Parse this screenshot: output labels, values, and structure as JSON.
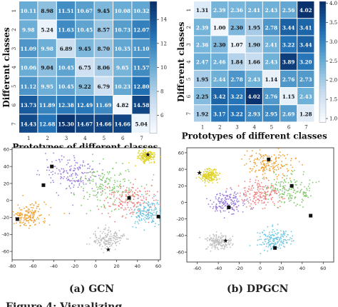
{
  "chart_data": [
    {
      "type": "heatmap",
      "xlabel": "Prototypes of different classes",
      "ylabel": "Different classes",
      "x_ticks": [
        "1",
        "2",
        "3",
        "4",
        "5",
        "6",
        "7"
      ],
      "y_ticks": [
        "1",
        "2",
        "3",
        "4",
        "5",
        "6",
        "7"
      ],
      "colorbar": {
        "ticks": [
          "6",
          "8",
          "10",
          "12",
          "14"
        ],
        "vmin": 4.5,
        "vmax": 15.5
      },
      "values": [
        [
          10.11,
          8.98,
          11.51,
          10.67,
          9.45,
          10.08,
          10.32
        ],
        [
          9.98,
          5.24,
          11.63,
          10.45,
          8.57,
          10.73,
          12.07
        ],
        [
          11.09,
          9.98,
          6.89,
          9.45,
          8.7,
          10.35,
          11.1
        ],
        [
          10.06,
          9.04,
          10.45,
          6.75,
          8.06,
          9.65,
          11.57
        ],
        [
          11.12,
          9.95,
          10.45,
          9.22,
          6.79,
          10.23,
          12.8
        ],
        [
          13.73,
          11.89,
          12.38,
          12.49,
          11.69,
          4.82,
          14.58
        ],
        [
          14.43,
          12.68,
          15.3,
          14.67,
          14.66,
          14.66,
          5.04
        ]
      ]
    },
    {
      "type": "heatmap",
      "xlabel": "Prototypes of different classes",
      "ylabel": "Different classes",
      "x_ticks": [
        "1",
        "2",
        "3",
        "4",
        "5",
        "6",
        "7"
      ],
      "y_ticks": [
        "1",
        "2",
        "3",
        "4",
        "5",
        "6",
        "7"
      ],
      "colorbar": {
        "ticks": [
          "1.0",
          "1.5",
          "2.0",
          "2.5",
          "3.0",
          "3.5",
          "4.0"
        ],
        "vmin": 0.9,
        "vmax": 4.05
      },
      "values": [
        [
          1.31,
          2.39,
          2.36,
          2.41,
          2.43,
          2.56,
          4.02
        ],
        [
          2.39,
          1.0,
          2.3,
          1.95,
          2.78,
          3.44,
          3.41
        ],
        [
          2.36,
          2.3,
          1.07,
          1.9,
          2.41,
          3.22,
          3.44
        ],
        [
          2.47,
          2.46,
          1.84,
          1.66,
          2.43,
          3.89,
          3.2
        ],
        [
          1.95,
          2.44,
          2.78,
          2.43,
          1.14,
          2.76,
          2.73
        ],
        [
          2.25,
          3.42,
          3.22,
          4.02,
          2.76,
          1.15,
          2.43
        ],
        [
          1.92,
          3.17,
          3.22,
          2.93,
          2.95,
          2.69,
          1.28
        ]
      ]
    },
    {
      "type": "scatter",
      "caption": "(a) GCN",
      "x_ticks": [
        "-80",
        "-60",
        "-40",
        "-20",
        "0",
        "20",
        "40",
        "60"
      ],
      "y_ticks": [
        "-60",
        "-40",
        "-20",
        "0",
        "20",
        "40",
        "60"
      ],
      "xlim": [
        -80,
        62
      ],
      "ylim": [
        -70,
        62
      ],
      "clusters": [
        {
          "color": "#f0a030",
          "cx": -65,
          "cy": -18,
          "spread": 9
        },
        {
          "color": "#dfd22a",
          "cx": 49,
          "cy": 52,
          "spread": 4
        },
        {
          "color": "#9b7fdb",
          "cx": -22,
          "cy": 30,
          "spread": 14
        },
        {
          "color": "#7ec96a",
          "cx": 12,
          "cy": 18,
          "spread": 16
        },
        {
          "color": "#f08080",
          "cx": 32,
          "cy": 0,
          "spread": 12
        },
        {
          "color": "#6fc6e0",
          "cx": 50,
          "cy": -15,
          "spread": 9
        },
        {
          "color": "#c0c0c0",
          "cx": 12,
          "cy": -45,
          "spread": 7
        }
      ],
      "prototypes": [
        {
          "x": -75,
          "y": -22,
          "marker": "square"
        },
        {
          "x": -42,
          "y": 40,
          "marker": "square"
        },
        {
          "x": -50,
          "y": 18,
          "marker": "square"
        },
        {
          "x": 32,
          "y": 3,
          "marker": "square"
        },
        {
          "x": 60,
          "y": -19,
          "marker": "square"
        },
        {
          "x": 50,
          "y": 54,
          "marker": "star"
        },
        {
          "x": 12,
          "y": -58,
          "marker": "star"
        }
      ]
    },
    {
      "type": "scatter",
      "caption": "(b) DPGCN",
      "x_ticks": [
        "-60",
        "-40",
        "-20",
        "0",
        "20",
        "40",
        "60"
      ],
      "y_ticks": [
        "-60",
        "-40",
        "-20",
        "0",
        "20",
        "40",
        "60"
      ],
      "xlim": [
        -70,
        70
      ],
      "ylim": [
        -72,
        66
      ],
      "clusters": [
        {
          "color": "#f0a030",
          "cx": 8,
          "cy": 48,
          "spread": 11
        },
        {
          "color": "#dfd22a",
          "cx": -48,
          "cy": 32,
          "spread": 5
        },
        {
          "color": "#9b7fdb",
          "cx": -30,
          "cy": 0,
          "spread": 8
        },
        {
          "color": "#7ec96a",
          "cx": 28,
          "cy": 15,
          "spread": 11
        },
        {
          "color": "#f08080",
          "cx": 0,
          "cy": 10,
          "spread": 10
        },
        {
          "color": "#6fc6e0",
          "cx": 12,
          "cy": -45,
          "spread": 8
        },
        {
          "color": "#c0c0c0",
          "cx": -40,
          "cy": -48,
          "spread": 6
        }
      ],
      "prototypes": [
        {
          "x": 8,
          "y": 52,
          "marker": "square"
        },
        {
          "x": 30,
          "y": 20,
          "marker": "square"
        },
        {
          "x": -30,
          "y": -6,
          "marker": "square"
        },
        {
          "x": 48,
          "y": -16,
          "marker": "square"
        },
        {
          "x": 14,
          "y": -55,
          "marker": "square"
        },
        {
          "x": -58,
          "y": 36,
          "marker": "star"
        },
        {
          "x": -33,
          "y": -46,
          "marker": "star"
        }
      ]
    }
  ],
  "captions": {
    "a": "(a) GCN",
    "b": "(b) DPGCN"
  },
  "page_text": {
    "bottom_cut": "Figure 4: Visualizing ..."
  }
}
